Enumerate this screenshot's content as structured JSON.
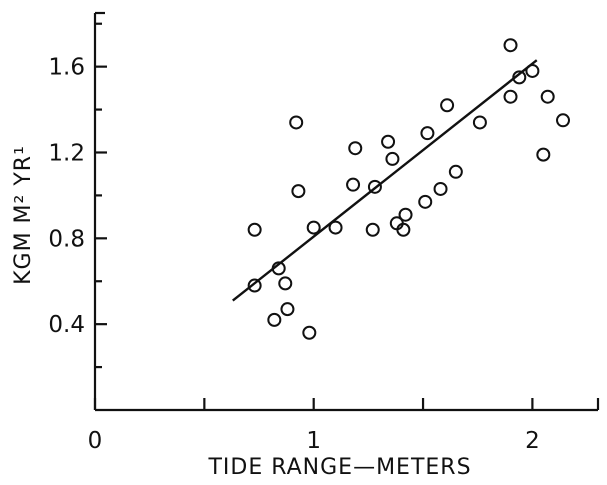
{
  "chart_data": {
    "type": "scatter",
    "title": "",
    "xlabel": "TIDE RANGE—METERS",
    "ylabel": "KGM M² YR¹",
    "xlim": [
      0,
      2.3
    ],
    "ylim": [
      0,
      1.85
    ],
    "x_ticks": [
      0,
      0.5,
      1,
      1.5,
      2
    ],
    "x_tick_labels": [
      "0",
      "",
      "1",
      "",
      "2"
    ],
    "y_ticks": [
      0.4,
      0.8,
      1.2,
      1.6
    ],
    "y_tick_labels": [
      "0.4",
      "0.8",
      "1.2",
      "1.6"
    ],
    "y_minor_ticks": [
      0.2,
      0.6,
      1.0,
      1.4,
      1.8
    ],
    "grid": false,
    "legend": "none",
    "points": [
      {
        "x": 0.73,
        "y": 0.84
      },
      {
        "x": 0.73,
        "y": 0.58
      },
      {
        "x": 0.82,
        "y": 0.42
      },
      {
        "x": 0.84,
        "y": 0.66
      },
      {
        "x": 0.87,
        "y": 0.59
      },
      {
        "x": 0.88,
        "y": 0.47
      },
      {
        "x": 0.92,
        "y": 1.34
      },
      {
        "x": 0.93,
        "y": 1.02
      },
      {
        "x": 0.98,
        "y": 0.36
      },
      {
        "x": 1.0,
        "y": 0.85
      },
      {
        "x": 1.1,
        "y": 0.85
      },
      {
        "x": 1.18,
        "y": 1.05
      },
      {
        "x": 1.19,
        "y": 1.22
      },
      {
        "x": 1.27,
        "y": 0.84
      },
      {
        "x": 1.28,
        "y": 1.04
      },
      {
        "x": 1.34,
        "y": 1.25
      },
      {
        "x": 1.36,
        "y": 1.17
      },
      {
        "x": 1.38,
        "y": 0.87
      },
      {
        "x": 1.41,
        "y": 0.84
      },
      {
        "x": 1.42,
        "y": 0.91
      },
      {
        "x": 1.51,
        "y": 0.97
      },
      {
        "x": 1.52,
        "y": 1.29
      },
      {
        "x": 1.58,
        "y": 1.03
      },
      {
        "x": 1.61,
        "y": 1.42
      },
      {
        "x": 1.65,
        "y": 1.11
      },
      {
        "x": 1.76,
        "y": 1.34
      },
      {
        "x": 1.9,
        "y": 1.46
      },
      {
        "x": 1.9,
        "y": 1.7
      },
      {
        "x": 1.94,
        "y": 1.55
      },
      {
        "x": 2.0,
        "y": 1.58
      },
      {
        "x": 2.05,
        "y": 1.19
      },
      {
        "x": 2.07,
        "y": 1.46
      },
      {
        "x": 2.14,
        "y": 1.35
      }
    ],
    "fit_line": {
      "x": [
        0.63,
        2.02
      ],
      "y": [
        0.51,
        1.63
      ]
    }
  }
}
